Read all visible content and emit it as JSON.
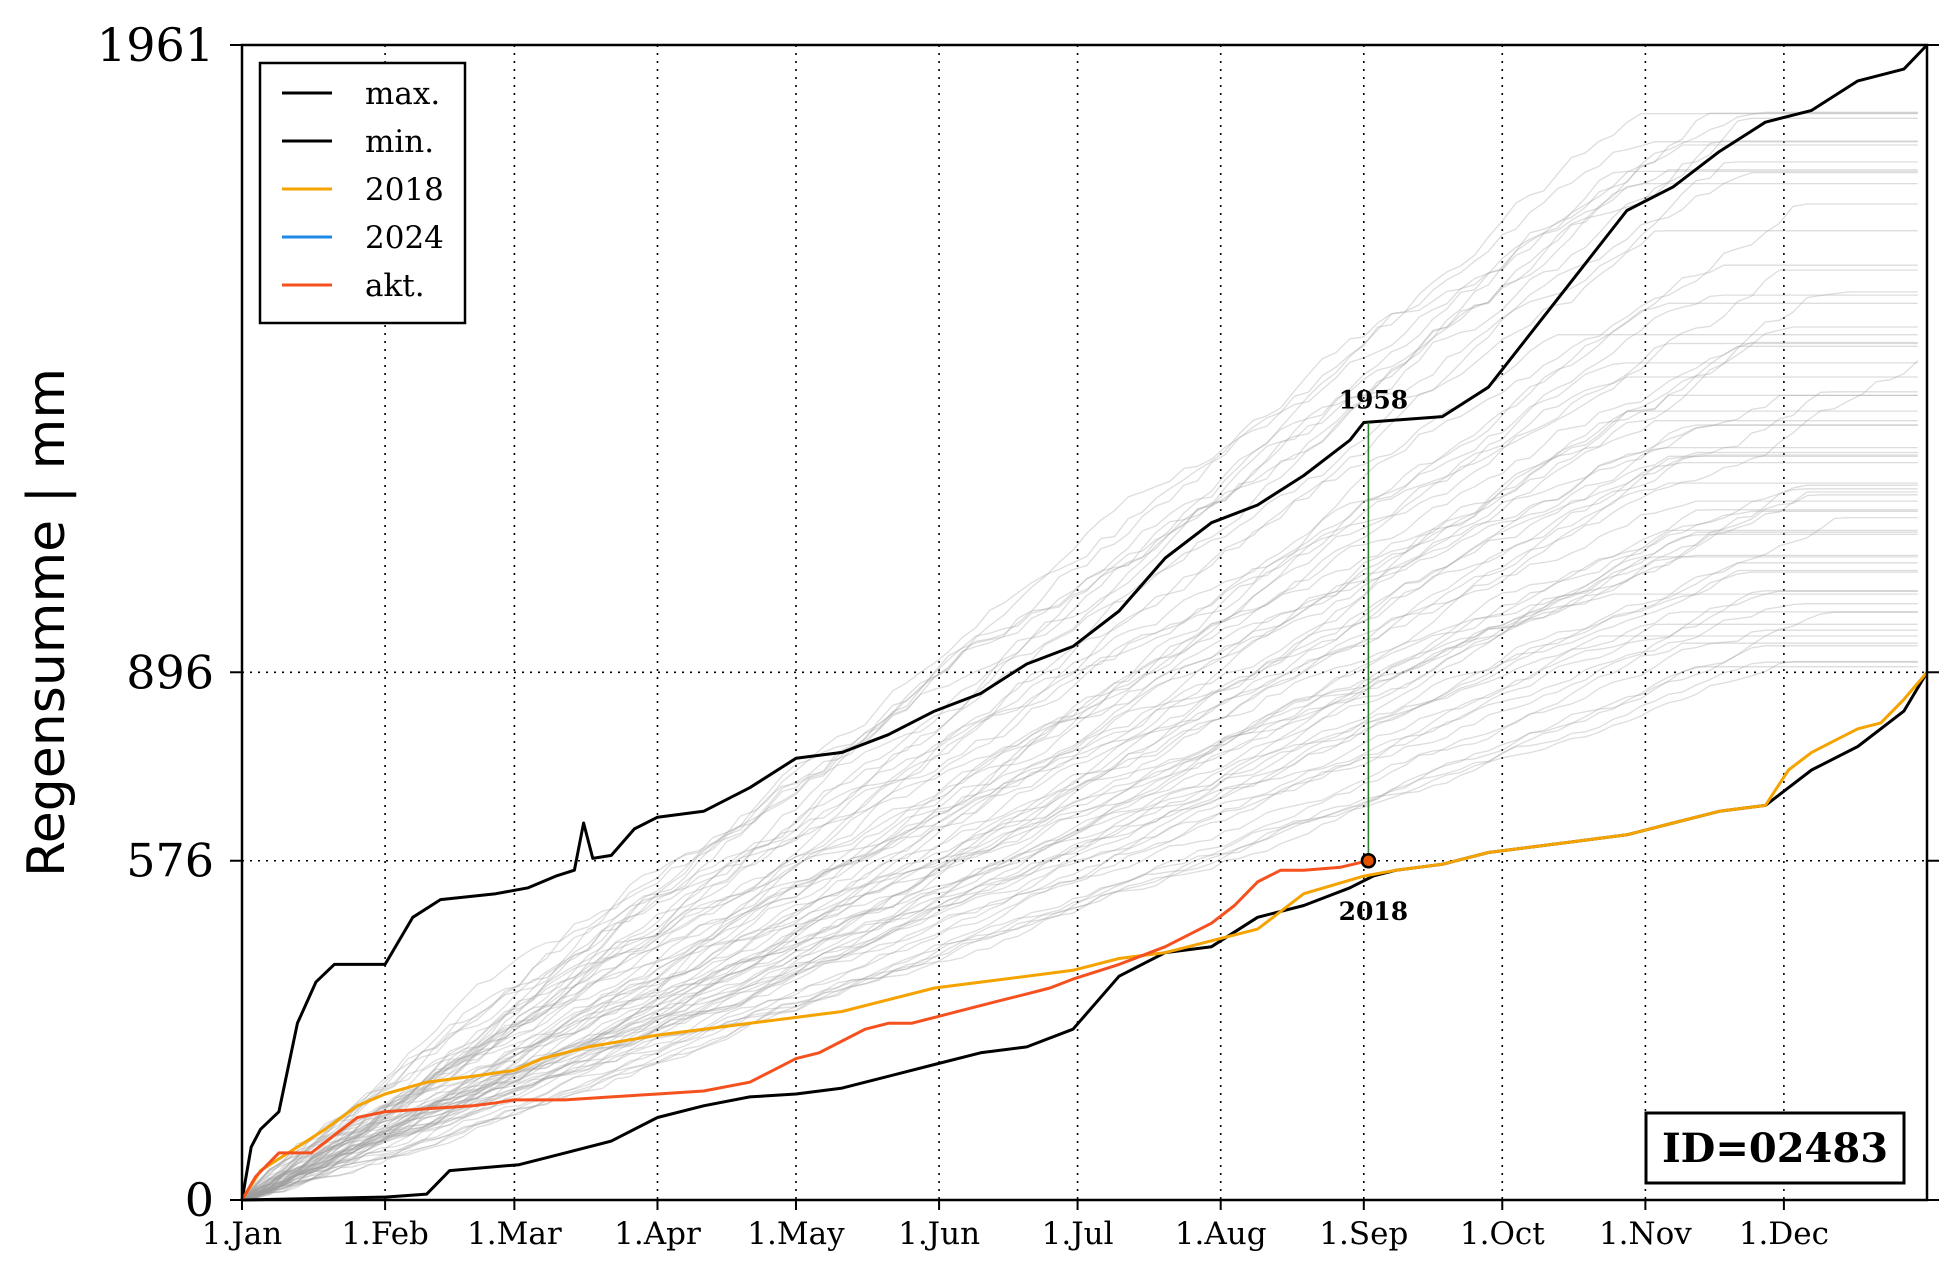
{
  "chart_data": {
    "type": "line",
    "title": "",
    "xlabel": "",
    "ylabel": "Regensumme | mm",
    "xlim": [
      0,
      365
    ],
    "ylim": [
      0,
      1961
    ],
    "x_ticks": [
      {
        "label": "1.Jan",
        "day": 0
      },
      {
        "label": "1.Feb",
        "day": 31
      },
      {
        "label": "1.Mar",
        "day": 59
      },
      {
        "label": "1.Apr",
        "day": 90
      },
      {
        "label": "1.May",
        "day": 120
      },
      {
        "label": "1.Jun",
        "day": 151
      },
      {
        "label": "1.Jul",
        "day": 181
      },
      {
        "label": "1.Aug",
        "day": 212
      },
      {
        "label": "1.Sep",
        "day": 243
      },
      {
        "label": "1.Oct",
        "day": 273
      },
      {
        "label": "1.Nov",
        "day": 304
      },
      {
        "label": "1.Dec",
        "day": 334
      }
    ],
    "y_ticks": [
      0,
      576,
      896,
      1961
    ],
    "grid": "dotted",
    "legend": {
      "placement": "top-left",
      "entries": [
        {
          "label": "max.",
          "color": "#000000"
        },
        {
          "label": "min.",
          "color": "#000000"
        },
        {
          "label": "2018",
          "color": "#f5a300"
        },
        {
          "label": "2024",
          "color": "#1e88e5"
        },
        {
          "label": "akt.",
          "color": "#f4511e"
        }
      ]
    },
    "series": [
      {
        "name": "max.",
        "color": "#000000",
        "points": [
          [
            0,
            0
          ],
          [
            2,
            90
          ],
          [
            4,
            120
          ],
          [
            8,
            150
          ],
          [
            12,
            300
          ],
          [
            16,
            370
          ],
          [
            20,
            400
          ],
          [
            31,
            400
          ],
          [
            37,
            480
          ],
          [
            43,
            510
          ],
          [
            55,
            520
          ],
          [
            62,
            530
          ],
          [
            68,
            550
          ],
          [
            72,
            560
          ],
          [
            74,
            640
          ],
          [
            76,
            580
          ],
          [
            80,
            585
          ],
          [
            85,
            630
          ],
          [
            90,
            650
          ],
          [
            100,
            660
          ],
          [
            110,
            700
          ],
          [
            120,
            750
          ],
          [
            130,
            760
          ],
          [
            140,
            790
          ],
          [
            150,
            830
          ],
          [
            160,
            860
          ],
          [
            170,
            910
          ],
          [
            180,
            940
          ],
          [
            190,
            1000
          ],
          [
            200,
            1090
          ],
          [
            210,
            1150
          ],
          [
            220,
            1180
          ],
          [
            230,
            1230
          ],
          [
            240,
            1290
          ],
          [
            243,
            1320
          ],
          [
            260,
            1330
          ],
          [
            270,
            1380
          ],
          [
            280,
            1480
          ],
          [
            290,
            1580
          ],
          [
            300,
            1680
          ],
          [
            310,
            1720
          ],
          [
            320,
            1780
          ],
          [
            330,
            1830
          ],
          [
            340,
            1850
          ],
          [
            350,
            1900
          ],
          [
            360,
            1920
          ],
          [
            365,
            1961
          ]
        ]
      },
      {
        "name": "min.",
        "color": "#000000",
        "points": [
          [
            0,
            0
          ],
          [
            31,
            5
          ],
          [
            40,
            10
          ],
          [
            45,
            50
          ],
          [
            60,
            60
          ],
          [
            70,
            80
          ],
          [
            80,
            100
          ],
          [
            90,
            140
          ],
          [
            100,
            160
          ],
          [
            110,
            175
          ],
          [
            120,
            180
          ],
          [
            130,
            190
          ],
          [
            140,
            210
          ],
          [
            150,
            230
          ],
          [
            160,
            250
          ],
          [
            170,
            260
          ],
          [
            180,
            290
          ],
          [
            190,
            380
          ],
          [
            200,
            420
          ],
          [
            210,
            430
          ],
          [
            220,
            480
          ],
          [
            230,
            500
          ],
          [
            240,
            530
          ],
          [
            245,
            550
          ],
          [
            250,
            560
          ],
          [
            260,
            570
          ],
          [
            270,
            590
          ],
          [
            280,
            600
          ],
          [
            290,
            610
          ],
          [
            300,
            620
          ],
          [
            310,
            640
          ],
          [
            320,
            660
          ],
          [
            330,
            670
          ],
          [
            340,
            730
          ],
          [
            350,
            770
          ],
          [
            360,
            830
          ],
          [
            365,
            896
          ]
        ]
      },
      {
        "name": "2018",
        "color": "#f5a300",
        "points": [
          [
            0,
            0
          ],
          [
            4,
            50
          ],
          [
            10,
            80
          ],
          [
            18,
            120
          ],
          [
            25,
            160
          ],
          [
            31,
            180
          ],
          [
            40,
            200
          ],
          [
            50,
            210
          ],
          [
            59,
            220
          ],
          [
            65,
            240
          ],
          [
            75,
            260
          ],
          [
            90,
            280
          ],
          [
            100,
            290
          ],
          [
            110,
            300
          ],
          [
            120,
            310
          ],
          [
            130,
            320
          ],
          [
            140,
            340
          ],
          [
            150,
            360
          ],
          [
            160,
            370
          ],
          [
            170,
            380
          ],
          [
            180,
            390
          ],
          [
            190,
            410
          ],
          [
            200,
            420
          ],
          [
            210,
            440
          ],
          [
            220,
            460
          ],
          [
            230,
            520
          ],
          [
            243,
            550
          ],
          [
            250,
            560
          ],
          [
            260,
            570
          ],
          [
            270,
            590
          ],
          [
            280,
            600
          ],
          [
            290,
            610
          ],
          [
            300,
            620
          ],
          [
            310,
            640
          ],
          [
            320,
            660
          ],
          [
            330,
            670
          ],
          [
            335,
            730
          ],
          [
            340,
            760
          ],
          [
            345,
            780
          ],
          [
            350,
            800
          ],
          [
            355,
            810
          ],
          [
            360,
            850
          ],
          [
            365,
            896
          ]
        ]
      },
      {
        "name": "akt.",
        "color": "#f4511e",
        "points": [
          [
            0,
            0
          ],
          [
            3,
            40
          ],
          [
            8,
            80
          ],
          [
            15,
            80
          ],
          [
            20,
            110
          ],
          [
            25,
            140
          ],
          [
            31,
            150
          ],
          [
            40,
            155
          ],
          [
            50,
            160
          ],
          [
            55,
            165
          ],
          [
            59,
            170
          ],
          [
            70,
            170
          ],
          [
            80,
            175
          ],
          [
            90,
            180
          ],
          [
            100,
            185
          ],
          [
            110,
            200
          ],
          [
            115,
            220
          ],
          [
            120,
            240
          ],
          [
            125,
            250
          ],
          [
            130,
            270
          ],
          [
            135,
            290
          ],
          [
            140,
            300
          ],
          [
            145,
            300
          ],
          [
            150,
            310
          ],
          [
            160,
            330
          ],
          [
            165,
            340
          ],
          [
            170,
            350
          ],
          [
            175,
            360
          ],
          [
            180,
            375
          ],
          [
            190,
            400
          ],
          [
            200,
            430
          ],
          [
            210,
            470
          ],
          [
            215,
            500
          ],
          [
            220,
            540
          ],
          [
            225,
            560
          ],
          [
            230,
            560
          ],
          [
            238,
            565
          ],
          [
            244,
            576
          ]
        ]
      }
    ],
    "background_series_note": "",
    "marker": {
      "x": 244,
      "y": 576
    },
    "annotations": [
      {
        "text": "1958",
        "x": 244,
        "y": 1320
      },
      {
        "text": "2018",
        "x": 244,
        "y": 550
      }
    ],
    "id_box": "ID=02483"
  }
}
